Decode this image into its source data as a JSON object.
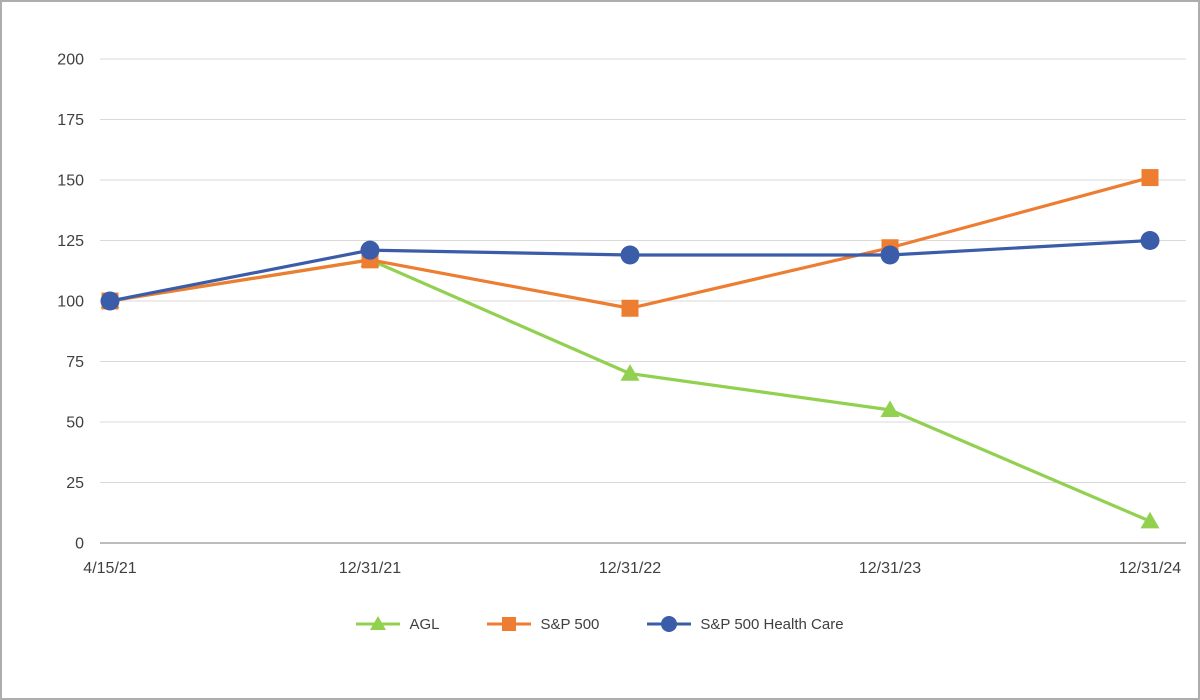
{
  "page": {
    "background": "#FFFFFF",
    "border_color": "#ADADAD"
  },
  "chart_data": {
    "type": "line",
    "title": "",
    "xlabel": "",
    "ylabel": "",
    "categories": [
      "4/15/21",
      "12/31/21",
      "12/31/22",
      "12/31/23",
      "12/31/24"
    ],
    "series": [
      {
        "name": "AGL",
        "marker": "triangle",
        "color": "#92D050",
        "values": [
          100,
          117,
          70,
          55,
          9
        ]
      },
      {
        "name": "S&P 500",
        "marker": "square",
        "color": "#ED7D31",
        "values": [
          100,
          117,
          97,
          122,
          151
        ]
      },
      {
        "name": "S&P 500 Health Care",
        "marker": "circle",
        "color": "#3B5CA8",
        "values": [
          100,
          121,
          119,
          119,
          125
        ]
      }
    ],
    "ylim": [
      0,
      200
    ],
    "ytick_step": 25,
    "yticks": [
      0,
      25,
      50,
      75,
      100,
      125,
      150,
      175,
      200
    ],
    "grid": true,
    "gridline_color": "#D9D9D9",
    "axis_line_color": "#A6A6A6",
    "tick_label_color": "#404040",
    "legend_position": "bottom"
  }
}
